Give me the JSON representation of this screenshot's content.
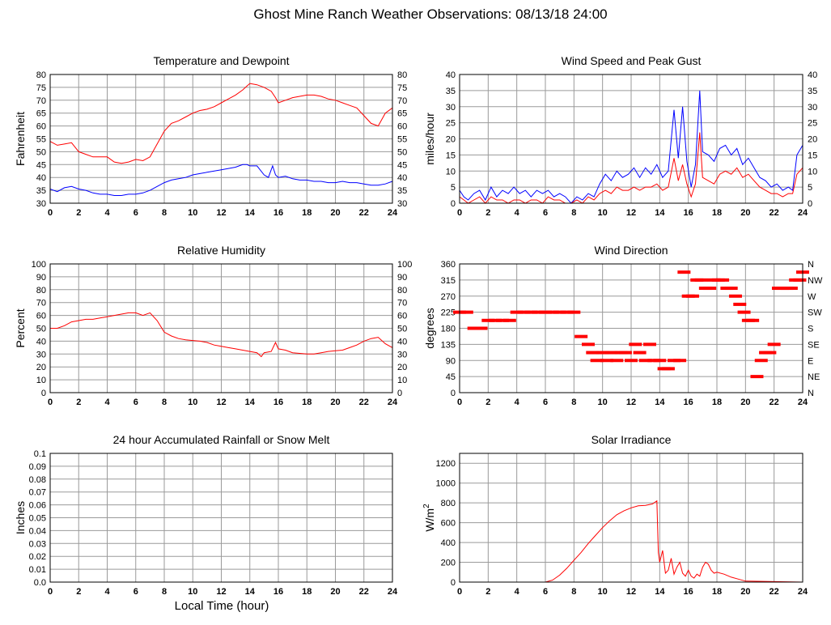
{
  "title": "Ghost Mine Ranch Weather Observations: 08/13/18 24:00",
  "x_axis_label": "Local Time (hour)",
  "colors": {
    "red": "#ff0000",
    "blue": "#0000ff",
    "grid": "#9a9a9a",
    "axis": "#000000"
  },
  "chart_data": [
    {
      "type": "line",
      "title": "Temperature and Dewpoint",
      "ylabel": "Fahrenheit",
      "xlabel": "",
      "xlim": [
        0,
        24
      ],
      "ylim": [
        30,
        80
      ],
      "x_ticks": [
        0,
        2,
        4,
        6,
        8,
        10,
        12,
        14,
        16,
        18,
        20,
        22,
        24
      ],
      "y_ticks": [
        30,
        35,
        40,
        45,
        50,
        55,
        60,
        65,
        70,
        75,
        80
      ],
      "right_ticks": [
        "30",
        "35",
        "40",
        "45",
        "50",
        "55",
        "60",
        "65",
        "70",
        "75",
        "80"
      ],
      "grid": true,
      "series": [
        {
          "color": "#ff0000",
          "x": [
            0,
            0.5,
            1,
            1.5,
            2,
            2.5,
            3,
            3.5,
            4,
            4.5,
            5,
            5.5,
            6,
            6.5,
            7,
            7.5,
            8,
            8.5,
            9,
            9.5,
            10,
            10.5,
            11,
            11.5,
            12,
            12.5,
            13,
            13.5,
            13.8,
            14,
            14.5,
            15,
            15.5,
            15.8,
            16,
            16.5,
            17,
            17.5,
            18,
            18.5,
            19,
            19.5,
            20,
            20.5,
            21,
            21.5,
            22,
            22.5,
            23,
            23.5,
            24
          ],
          "y": [
            54,
            52.5,
            53,
            53.5,
            50,
            49,
            48,
            48,
            48,
            46,
            45.5,
            46,
            47,
            46.5,
            48,
            53,
            58,
            61,
            62,
            63.5,
            65,
            66,
            66.5,
            67.5,
            69,
            70.5,
            72,
            74,
            75.5,
            76.5,
            76,
            75,
            73.5,
            71,
            69,
            70,
            71,
            71.5,
            72,
            72,
            71.5,
            70.5,
            70,
            69,
            68,
            67,
            64,
            61,
            60,
            65,
            67
          ]
        },
        {
          "color": "#0000ff",
          "x": [
            0,
            0.5,
            1,
            1.5,
            2,
            2.5,
            3,
            3.5,
            4,
            4.5,
            5,
            5.5,
            6,
            6.5,
            7,
            7.5,
            8,
            8.5,
            9,
            9.5,
            10,
            10.5,
            11,
            11.5,
            12,
            12.5,
            13,
            13.5,
            13.8,
            14,
            14.5,
            15,
            15.3,
            15.6,
            15.8,
            16,
            16.5,
            17,
            17.5,
            18,
            18.5,
            19,
            19.5,
            20,
            20.5,
            21,
            21.5,
            22,
            22.5,
            23,
            23.5,
            24
          ],
          "y": [
            35.5,
            34.5,
            36,
            36.5,
            35.5,
            35,
            34,
            33.5,
            33.5,
            33,
            33,
            33.5,
            33.5,
            34,
            35,
            36.5,
            38,
            39,
            39.5,
            40,
            41,
            41.5,
            42,
            42.5,
            43,
            43.5,
            44,
            45,
            45,
            44.5,
            44.5,
            41,
            40,
            44.5,
            41,
            40,
            40.5,
            39.5,
            39,
            39,
            38.5,
            38.5,
            38,
            38,
            38.5,
            38,
            38,
            37.5,
            37,
            37,
            37.5,
            38.5
          ]
        }
      ]
    },
    {
      "type": "line",
      "title": "Wind Speed and Peak Gust",
      "ylabel": "miles/hour",
      "xlabel": "",
      "xlim": [
        0,
        24
      ],
      "ylim": [
        0,
        40
      ],
      "x_ticks": [
        0,
        2,
        4,
        6,
        8,
        10,
        12,
        14,
        16,
        18,
        20,
        22,
        24
      ],
      "y_ticks": [
        0,
        5,
        10,
        15,
        20,
        25,
        30,
        35,
        40
      ],
      "right_ticks": [
        "0",
        "5",
        "10",
        "15",
        "20",
        "25",
        "30",
        "35",
        "40"
      ],
      "grid": true,
      "series": [
        {
          "color": "#0000ff",
          "x": [
            0,
            0.3,
            0.6,
            1,
            1.4,
            1.8,
            2.2,
            2.6,
            3,
            3.4,
            3.8,
            4.2,
            4.6,
            5,
            5.4,
            5.8,
            6.2,
            6.6,
            7,
            7.4,
            7.8,
            8.2,
            8.6,
            9,
            9.4,
            9.8,
            10.2,
            10.6,
            11,
            11.4,
            11.8,
            12.2,
            12.6,
            13,
            13.4,
            13.8,
            14.2,
            14.6,
            15,
            15.3,
            15.6,
            15.9,
            16.2,
            16.5,
            16.8,
            17,
            17.4,
            17.8,
            18.2,
            18.6,
            19,
            19.4,
            19.8,
            20.2,
            20.6,
            21,
            21.4,
            21.8,
            22.2,
            22.6,
            23,
            23.3,
            23.6,
            24
          ],
          "y": [
            4,
            2,
            1,
            3,
            4,
            1,
            5,
            2,
            4,
            3,
            5,
            3,
            4,
            2,
            4,
            3,
            4,
            2,
            3,
            2,
            0,
            2,
            1,
            3,
            2,
            6,
            9,
            7,
            10,
            8,
            9,
            11,
            8,
            11,
            9,
            12,
            8,
            10,
            29,
            14,
            30,
            13,
            5,
            12,
            35,
            16,
            15,
            13,
            17,
            18,
            15,
            17,
            12,
            14,
            11,
            8,
            7,
            5,
            6,
            4,
            5,
            4,
            15,
            18
          ]
        },
        {
          "color": "#ff0000",
          "x": [
            0,
            0.3,
            0.6,
            1,
            1.4,
            1.8,
            2.2,
            2.6,
            3,
            3.4,
            3.8,
            4.2,
            4.6,
            5,
            5.4,
            5.8,
            6.2,
            6.6,
            7,
            7.4,
            7.8,
            8.2,
            8.6,
            9,
            9.4,
            9.8,
            10.2,
            10.6,
            11,
            11.4,
            11.8,
            12.2,
            12.6,
            13,
            13.4,
            13.8,
            14.2,
            14.6,
            15,
            15.3,
            15.6,
            15.9,
            16.2,
            16.5,
            16.8,
            17,
            17.4,
            17.8,
            18.2,
            18.6,
            19,
            19.4,
            19.8,
            20.2,
            20.6,
            21,
            21.4,
            21.8,
            22.2,
            22.6,
            23,
            23.3,
            23.6,
            24
          ],
          "y": [
            2,
            1,
            0,
            1,
            2,
            0,
            2,
            1,
            1,
            0,
            1,
            1,
            0,
            1,
            1,
            0,
            2,
            1,
            1,
            0,
            0,
            1,
            0,
            2,
            1,
            3,
            4,
            3,
            5,
            4,
            4,
            5,
            4,
            5,
            5,
            6,
            4,
            5,
            14,
            7,
            12,
            6,
            2,
            6,
            22,
            8,
            7,
            6,
            9,
            10,
            9,
            11,
            8,
            9,
            7,
            5,
            4,
            3,
            3,
            2,
            3,
            3,
            9,
            11
          ]
        }
      ]
    },
    {
      "type": "line",
      "title": "Relative Humidity",
      "ylabel": "Percent",
      "xlabel": "",
      "xlim": [
        0,
        24
      ],
      "ylim": [
        0,
        100
      ],
      "x_ticks": [
        0,
        2,
        4,
        6,
        8,
        10,
        12,
        14,
        16,
        18,
        20,
        22,
        24
      ],
      "y_ticks": [
        0,
        10,
        20,
        30,
        40,
        50,
        60,
        70,
        80,
        90,
        100
      ],
      "right_ticks": [
        "0",
        "10",
        "20",
        "30",
        "40",
        "50",
        "60",
        "70",
        "80",
        "90",
        "100"
      ],
      "grid": true,
      "series": [
        {
          "color": "#ff0000",
          "x": [
            0,
            0.5,
            1,
            1.5,
            2,
            2.5,
            3,
            3.5,
            4,
            4.5,
            5,
            5.5,
            6,
            6.5,
            7,
            7.5,
            8,
            8.5,
            9,
            9.5,
            10,
            10.5,
            11,
            11.5,
            12,
            12.5,
            13,
            13.5,
            14,
            14.5,
            14.8,
            15,
            15.5,
            15.8,
            16,
            16.5,
            17,
            17.5,
            18,
            18.5,
            19,
            19.5,
            20,
            20.5,
            21,
            21.5,
            22,
            22.5,
            23,
            23.5,
            24
          ],
          "y": [
            50,
            50,
            52,
            55,
            56,
            57,
            57,
            58,
            59,
            60,
            61,
            62,
            62,
            60,
            62,
            56,
            47,
            44,
            42,
            41,
            40.5,
            40,
            39,
            37,
            36,
            35,
            34,
            33,
            32,
            31,
            28,
            31,
            32,
            39,
            34,
            33,
            31,
            30.5,
            30,
            30,
            31,
            32,
            32.5,
            33,
            35,
            37,
            40,
            42,
            43,
            38,
            35
          ]
        }
      ]
    },
    {
      "type": "scatter",
      "title": "Wind Direction",
      "ylabel": "degrees",
      "xlabel": "",
      "xlim": [
        0,
        24
      ],
      "ylim": [
        0,
        360
      ],
      "x_ticks": [
        0,
        2,
        4,
        6,
        8,
        10,
        12,
        14,
        16,
        18,
        20,
        22,
        24
      ],
      "y_ticks": [
        0,
        45,
        90,
        135,
        180,
        225,
        270,
        315,
        360
      ],
      "right_ticks": [
        "N",
        "NE",
        "E",
        "SE",
        "S",
        "SW",
        "W",
        "NW",
        "N"
      ],
      "grid": true,
      "series": [
        {
          "color": "#ff0000",
          "x": [
            0.0,
            0.5,
            1.0,
            1.5,
            2.0,
            2.5,
            3.0,
            3.5,
            4.0,
            4.5,
            5.0,
            5.5,
            6.0,
            6.5,
            7.0,
            7.5,
            8.0,
            8.5,
            9.0,
            9.3,
            9.6,
            10.0,
            10.3,
            10.6,
            11.0,
            11.3,
            11.6,
            12.0,
            12.3,
            12.6,
            13.0,
            13.3,
            13.6,
            14.0,
            14.3,
            14.6,
            15.0,
            15.4,
            15.7,
            16.0,
            16.3,
            16.6,
            16.9,
            17.2,
            17.5,
            17.8,
            18.1,
            18.4,
            18.7,
            19.0,
            19.3,
            19.6,
            19.9,
            20.2,
            20.5,
            20.8,
            21.1,
            21.4,
            21.7,
            22.0,
            22.3,
            22.6,
            22.9,
            23.2,
            23.5,
            23.8,
            24.0
          ],
          "y": [
            225,
            225,
            180,
            180,
            202,
            202,
            202,
            202,
            225,
            225,
            225,
            225,
            225,
            225,
            225,
            225,
            225,
            157,
            135,
            112,
            90,
            112,
            90,
            112,
            90,
            112,
            112,
            90,
            135,
            112,
            90,
            135,
            90,
            90,
            67,
            67,
            90,
            90,
            337,
            270,
            270,
            315,
            315,
            292,
            292,
            315,
            315,
            315,
            292,
            292,
            270,
            247,
            225,
            202,
            202,
            45,
            90,
            112,
            112,
            135,
            292,
            292,
            292,
            292,
            315,
            315,
            337
          ]
        }
      ]
    },
    {
      "type": "line",
      "title": "24 hour Accumulated Rainfall or Snow Melt",
      "ylabel": "Inches",
      "xlabel": "Local Time (hour)",
      "xlim": [
        0,
        24
      ],
      "ylim": [
        0,
        0.1
      ],
      "x_ticks": [
        0,
        2,
        4,
        6,
        8,
        10,
        12,
        14,
        16,
        18,
        20,
        22,
        24
      ],
      "y_ticks": [
        0,
        0.01,
        0.02,
        0.03,
        0.04,
        0.05,
        0.06,
        0.07,
        0.08,
        0.09,
        0.1
      ],
      "y_tick_labels": [
        "0.0",
        "0.01",
        "0.02",
        "0.03",
        "0.04",
        "0.05",
        "0.06",
        "0.07",
        "0.08",
        "0.09",
        "0.1"
      ],
      "grid": true,
      "series": [
        {
          "color": "#ff0000",
          "x": [
            0,
            24
          ],
          "y": [
            0,
            0
          ]
        }
      ]
    },
    {
      "type": "line",
      "title": "Solar Irradiance",
      "ylabel": "W/m",
      "ylabel_superscript": "2",
      "xlabel": "",
      "xlim": [
        0,
        24
      ],
      "ylim": [
        0,
        1300
      ],
      "x_ticks": [
        0,
        2,
        4,
        6,
        8,
        10,
        12,
        14,
        16,
        18,
        20,
        22,
        24
      ],
      "y_ticks": [
        0,
        200,
        400,
        600,
        800,
        1000,
        1200
      ],
      "grid": true,
      "series": [
        {
          "color": "#ff0000",
          "x": [
            0,
            6,
            6.5,
            7,
            7.5,
            8,
            8.5,
            9,
            9.5,
            10,
            10.5,
            11,
            11.5,
            12,
            12.5,
            13,
            13.5,
            13.8,
            13.9,
            14.0,
            14.2,
            14.4,
            14.6,
            14.8,
            15.0,
            15.2,
            15.4,
            15.6,
            15.8,
            16.0,
            16.2,
            16.4,
            16.6,
            16.8,
            17.0,
            17.2,
            17.4,
            17.6,
            17.8,
            18.0,
            18.5,
            19.0,
            19.5,
            20.0,
            24
          ],
          "y": [
            0,
            0,
            20,
            70,
            140,
            220,
            300,
            390,
            470,
            550,
            620,
            680,
            720,
            750,
            770,
            775,
            790,
            820,
            300,
            200,
            320,
            90,
            120,
            240,
            80,
            150,
            200,
            90,
            60,
            120,
            60,
            40,
            80,
            60,
            150,
            200,
            180,
            120,
            90,
            100,
            80,
            50,
            30,
            10,
            0
          ]
        }
      ]
    }
  ]
}
